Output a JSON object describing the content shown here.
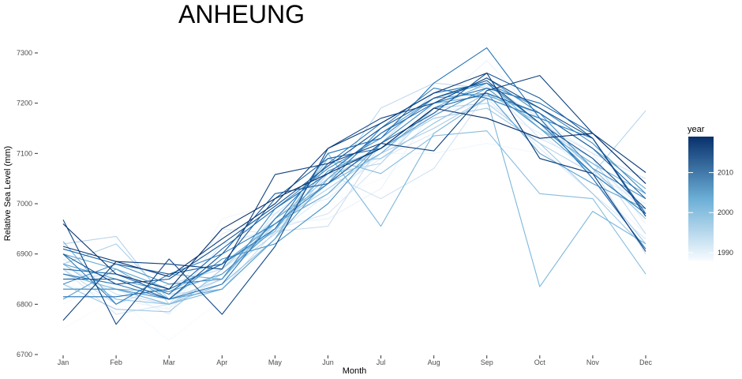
{
  "chart_data": {
    "type": "line",
    "title": "ANHEUNG",
    "xlabel": "Month",
    "ylabel": "Relative Sea Level (mm)",
    "categories": [
      "Jan",
      "Feb",
      "Mar",
      "Apr",
      "May",
      "Jun",
      "Jul",
      "Aug",
      "Sep",
      "Oct",
      "Nov",
      "Dec"
    ],
    "ylim": [
      6700,
      7350
    ],
    "yticks": [
      6700,
      6800,
      6900,
      7000,
      7100,
      7200,
      7300
    ],
    "grid": false,
    "legend": {
      "title": "year",
      "position": "right",
      "range": [
        1988,
        2019
      ],
      "ticks": [
        1990,
        2000,
        2010
      ],
      "color_low": "#f7fbff",
      "color_high": "#08306b"
    },
    "series": [
      {
        "name": "1988",
        "values": [
          6752,
          6812,
          6728,
          6810,
          6935,
          7005,
          7050,
          7120,
          7215,
          7150,
          7060,
          6995
        ]
      },
      {
        "name": "1989",
        "values": [
          6800,
          6860,
          6790,
          6970,
          7000,
          7050,
          7100,
          7100,
          7120,
          7100,
          7040,
          6940
        ]
      },
      {
        "name": "1990",
        "values": [
          6840,
          6810,
          6790,
          6900,
          6960,
          6970,
          7030,
          7190,
          7285,
          7170,
          7100,
          6960
        ]
      },
      {
        "name": "1991",
        "values": [
          6890,
          6830,
          6780,
          6940,
          6980,
          7010,
          7100,
          7180,
          7200,
          7140,
          7060,
          7000
        ]
      },
      {
        "name": "1992",
        "values": [
          6860,
          6840,
          6810,
          6950,
          6940,
          7020,
          7090,
          7140,
          7210,
          7110,
          7020,
          6930
        ]
      },
      {
        "name": "1993",
        "values": [
          6870,
          6780,
          6800,
          6920,
          6950,
          6980,
          7080,
          7200,
          7235,
          7130,
          7080,
          6985
        ]
      },
      {
        "name": "1994",
        "values": [
          6880,
          6820,
          6800,
          6850,
          6980,
          7060,
          7010,
          7070,
          7220,
          7160,
          7100,
          7050
        ]
      },
      {
        "name": "1995",
        "values": [
          6850,
          6860,
          6820,
          6830,
          6945,
          6955,
          7120,
          7220,
          7240,
          7170,
          7070,
          6900
        ]
      },
      {
        "name": "1996",
        "values": [
          6870,
          6800,
          6840,
          6870,
          6950,
          7040,
          7190,
          7240,
          7230,
          7150,
          7090,
          6940
        ]
      },
      {
        "name": "1997",
        "values": [
          6920,
          6935,
          6800,
          6860,
          6940,
          7060,
          7080,
          7190,
          7200,
          7120,
          7060,
          7185
        ]
      },
      {
        "name": "1998",
        "values": [
          6880,
          6920,
          6810,
          6850,
          6960,
          7030,
          7100,
          7150,
          7210,
          7170,
          7050,
          6920
        ]
      },
      {
        "name": "1999",
        "values": [
          6840,
          6790,
          6785,
          6870,
          6970,
          7050,
          7110,
          7170,
          7190,
          7120,
          7020,
          6910
        ]
      },
      {
        "name": "2000",
        "values": [
          6880,
          6810,
          6800,
          6840,
          6930,
          7080,
          7090,
          7160,
          7220,
          7160,
          7070,
          6970
        ]
      },
      {
        "name": "2001",
        "values": [
          6830,
          6830,
          6825,
          6880,
          6945,
          7090,
          7060,
          7135,
          7145,
          7020,
          7010,
          6860
        ]
      },
      {
        "name": "2002",
        "values": [
          6860,
          6830,
          6800,
          6830,
          6930,
          7100,
          6955,
          7140,
          7210,
          6835,
          6985,
          6920
        ]
      },
      {
        "name": "2003",
        "values": [
          6925,
          6800,
          6860,
          6850,
          6970,
          7040,
          7100,
          7190,
          7240,
          7150,
          7080,
          7020
        ]
      },
      {
        "name": "2004",
        "values": [
          6900,
          6870,
          6830,
          6880,
          6960,
          7020,
          7120,
          7200,
          7215,
          7180,
          7110,
          7030
        ]
      },
      {
        "name": "2005",
        "values": [
          6810,
          6870,
          6810,
          6830,
          6930,
          7050,
          7140,
          7210,
          7220,
          7100,
          7040,
          6990
        ]
      },
      {
        "name": "2006",
        "values": [
          6880,
          6850,
          6825,
          6860,
          6950,
          7065,
          7110,
          7175,
          7230,
          7150,
          7060,
          6980
        ]
      },
      {
        "name": "2007",
        "values": [
          6830,
          6830,
          6810,
          6890,
          6920,
          7000,
          7120,
          7200,
          7250,
          7180,
          7070,
          7010
        ]
      },
      {
        "name": "2008",
        "values": [
          6840,
          6880,
          6840,
          6850,
          6990,
          7070,
          7130,
          7210,
          7240,
          7190,
          7120,
          7020
        ]
      },
      {
        "name": "2009",
        "values": [
          6900,
          6800,
          6860,
          6900,
          6960,
          7040,
          7150,
          7230,
          7210,
          7170,
          7130,
          6975
        ]
      },
      {
        "name": "2010",
        "values": [
          6860,
          6840,
          6810,
          6840,
          6970,
          7080,
          7160,
          7220,
          7240,
          7160,
          7060,
          6980
        ]
      },
      {
        "name": "2011",
        "values": [
          6815,
          6815,
          6830,
          6880,
          6950,
          7100,
          7130,
          7240,
          7310,
          7170,
          7050,
          6910
        ]
      },
      {
        "name": "2012",
        "values": [
          6870,
          6860,
          6820,
          6910,
          6990,
          7060,
          7140,
          7200,
          7230,
          7200,
          7140,
          7040
        ]
      },
      {
        "name": "2013",
        "values": [
          6910,
          6880,
          6860,
          6880,
          7010,
          7090,
          7110,
          7190,
          7220,
          7180,
          7110,
          7010
        ]
      },
      {
        "name": "2014",
        "values": [
          6850,
          6850,
          6810,
          6900,
          7020,
          7040,
          7120,
          7180,
          7260,
          7210,
          7130,
          6980
        ]
      },
      {
        "name": "2015",
        "values": [
          6900,
          6840,
          6850,
          6920,
          6995,
          7075,
          7150,
          7210,
          7245,
          7160,
          7090,
          6990
        ]
      },
      {
        "name": "2016",
        "values": [
          6968,
          6760,
          6890,
          6780,
          6915,
          7110,
          7170,
          7200,
          7250,
          7190,
          7130,
          6975
        ]
      },
      {
        "name": "2017",
        "values": [
          6768,
          6885,
          6880,
          6870,
          7058,
          7080,
          7120,
          7105,
          7225,
          7255,
          7140,
          7062
        ]
      },
      {
        "name": "2018",
        "values": [
          6915,
          6885,
          6855,
          6930,
          7000,
          7110,
          7160,
          7220,
          7260,
          7090,
          7060,
          6905
        ]
      },
      {
        "name": "2019",
        "values": [
          6960,
          6860,
          6830,
          6950,
          7010,
          7060,
          7110,
          7190,
          7170,
          7130,
          7140,
          7040
        ]
      }
    ]
  }
}
